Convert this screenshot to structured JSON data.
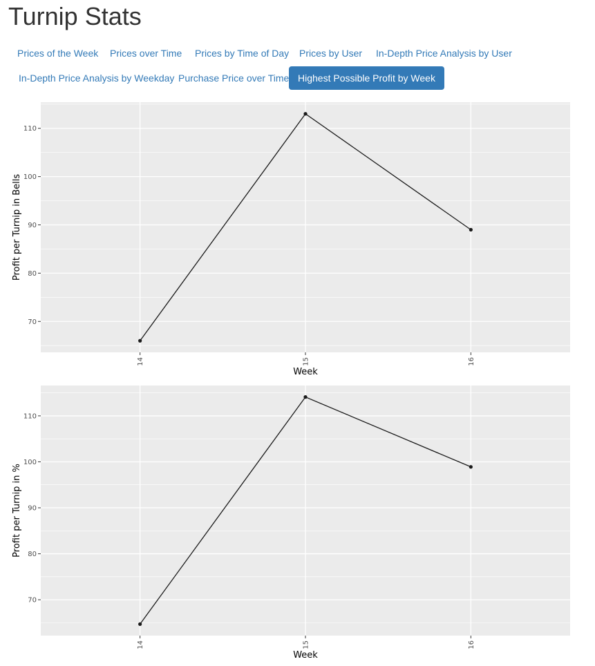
{
  "page_title": "Turnip Stats",
  "tabs": [
    {
      "label": "Prices of the Week",
      "active": false
    },
    {
      "label": "Prices over Time",
      "active": false
    },
    {
      "label": "Prices by Time of Day",
      "active": false
    },
    {
      "label": "Prices by User",
      "active": false
    },
    {
      "label": "In-Depth Price Analysis by User",
      "active": false
    },
    {
      "label": "In-Depth Price Analysis by Weekday",
      "active": false
    },
    {
      "label": "Purchase Price over Time",
      "active": false
    },
    {
      "label": "Highest Possible Profit by Week",
      "active": true
    }
  ],
  "colors": {
    "accent": "#337ab7",
    "panel_bg": "#ebebeb",
    "grid": "#ffffff",
    "line": "#1a1a1a"
  },
  "chart_data": [
    {
      "type": "line",
      "title": "",
      "x": [
        14,
        15,
        16
      ],
      "x_tick_labels": [
        "14",
        "15",
        "16"
      ],
      "y": [
        66,
        113,
        89
      ],
      "xlabel": "Week",
      "ylabel": "Profit per Turnip in Bells",
      "xlim": [
        13.4,
        16.6
      ],
      "ylim": [
        63.6,
        115.4
      ],
      "y_ticks": [
        70,
        80,
        90,
        100,
        110
      ],
      "y_tick_labels": [
        "70",
        "80",
        "90",
        "100",
        "110"
      ],
      "grid": true,
      "legend": "none"
    },
    {
      "type": "line",
      "title": "",
      "x": [
        14,
        15,
        16
      ],
      "x_tick_labels": [
        "14",
        "15",
        "16"
      ],
      "y": [
        64.7,
        114.1,
        98.9
      ],
      "xlabel": "Week",
      "ylabel": "Profit per Turnip in %",
      "xlim": [
        13.4,
        16.6
      ],
      "ylim": [
        62.2,
        116.6
      ],
      "y_ticks": [
        70,
        80,
        90,
        100,
        110
      ],
      "y_tick_labels": [
        "70",
        "80",
        "90",
        "100",
        "110"
      ],
      "grid": true,
      "legend": "none"
    }
  ]
}
